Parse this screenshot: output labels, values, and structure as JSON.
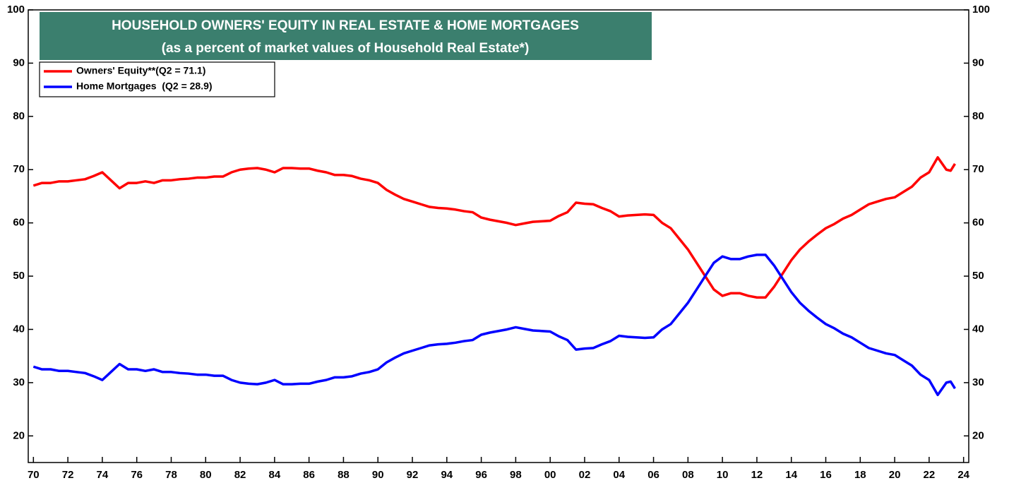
{
  "chart_data": {
    "type": "line",
    "title": "HOUSEHOLD OWNERS' EQUITY IN REAL ESTATE & HOME MORTGAGES",
    "subtitle": "(as a percent of market values of Household Real Estate*)",
    "x": [
      1970,
      1970.5,
      1971,
      1971.5,
      1972,
      1972.5,
      1973,
      1973.5,
      1974,
      1974.5,
      1975,
      1975.5,
      1976,
      1976.5,
      1977,
      1977.5,
      1978,
      1978.5,
      1979,
      1979.5,
      1980,
      1980.5,
      1981,
      1981.5,
      1982,
      1982.5,
      1983,
      1983.5,
      1984,
      1984.5,
      1985,
      1985.5,
      1986,
      1986.5,
      1987,
      1987.5,
      1988,
      1988.5,
      1989,
      1989.5,
      1990,
      1990.5,
      1991,
      1991.5,
      1992,
      1992.5,
      1993,
      1993.5,
      1994,
      1994.5,
      1995,
      1995.5,
      1996,
      1996.5,
      1997,
      1997.5,
      1998,
      1998.5,
      1999,
      1999.5,
      2000,
      2000.5,
      2001,
      2001.5,
      2002,
      2002.5,
      2003,
      2003.5,
      2004,
      2004.5,
      2005,
      2005.5,
      2006,
      2006.5,
      2007,
      2007.5,
      2008,
      2008.5,
      2009,
      2009.5,
      2010,
      2010.5,
      2011,
      2011.5,
      2012,
      2012.5,
      2013,
      2013.5,
      2014,
      2014.5,
      2015,
      2015.5,
      2016,
      2016.5,
      2017,
      2017.5,
      2018,
      2018.5,
      2019,
      2019.5,
      2020,
      2020.5,
      2021,
      2021.5,
      2022,
      2022.5,
      2023,
      2023.25,
      2023.5
    ],
    "series": [
      {
        "name": "Owners' Equity**(Q2 = 71.1)",
        "color": "#ff0000",
        "values": [
          67,
          67.5,
          67.5,
          67.8,
          67.8,
          68,
          68.2,
          68.8,
          69.5,
          68,
          66.5,
          67.5,
          67.5,
          67.8,
          67.5,
          68,
          68,
          68.2,
          68.3,
          68.5,
          68.5,
          68.7,
          68.7,
          69.5,
          70,
          70.2,
          70.3,
          70,
          69.5,
          70.3,
          70.3,
          70.2,
          70.2,
          69.8,
          69.5,
          69,
          69,
          68.8,
          68.3,
          68,
          67.5,
          66.2,
          65.3,
          64.5,
          64,
          63.5,
          63,
          62.8,
          62.7,
          62.5,
          62.2,
          62,
          61,
          60.6,
          60.3,
          60,
          59.6,
          59.9,
          60.2,
          60.3,
          60.4,
          61.3,
          62,
          63.8,
          63.6,
          63.5,
          62.8,
          62.2,
          61.2,
          61.4,
          61.5,
          61.6,
          61.5,
          60,
          59,
          57,
          55,
          52.5,
          50,
          47.5,
          46.3,
          46.8,
          46.8,
          46.3,
          46,
          46,
          48,
          50.5,
          53,
          55,
          56.5,
          57.8,
          59,
          59.8,
          60.8,
          61.5,
          62.5,
          63.5,
          64,
          64.5,
          64.8,
          65.8,
          66.8,
          68.5,
          69.5,
          72.3,
          70,
          69.8,
          71.1
        ]
      },
      {
        "name": "Home Mortgages  (Q2 = 28.9)",
        "color": "#0000ff",
        "values": [
          33,
          32.5,
          32.5,
          32.2,
          32.2,
          32,
          31.8,
          31.2,
          30.5,
          32,
          33.5,
          32.5,
          32.5,
          32.2,
          32.5,
          32,
          32,
          31.8,
          31.7,
          31.5,
          31.5,
          31.3,
          31.3,
          30.5,
          30,
          29.8,
          29.7,
          30,
          30.5,
          29.7,
          29.7,
          29.8,
          29.8,
          30.2,
          30.5,
          31,
          31,
          31.2,
          31.7,
          32,
          32.5,
          33.8,
          34.7,
          35.5,
          36,
          36.5,
          37,
          37.2,
          37.3,
          37.5,
          37.8,
          38,
          39,
          39.4,
          39.7,
          40,
          40.4,
          40.1,
          39.8,
          39.7,
          39.6,
          38.7,
          38,
          36.2,
          36.4,
          36.5,
          37.2,
          37.8,
          38.8,
          38.6,
          38.5,
          38.4,
          38.5,
          40,
          41,
          43,
          45,
          47.5,
          50,
          52.5,
          53.7,
          53.2,
          53.2,
          53.7,
          54,
          54,
          52,
          49.5,
          47,
          45,
          43.5,
          42.2,
          41,
          40.2,
          39.2,
          38.5,
          37.5,
          36.5,
          36,
          35.5,
          35.2,
          34.2,
          33.2,
          31.5,
          30.5,
          27.7,
          30,
          30.2,
          28.9
        ]
      }
    ],
    "xlim": [
      1969.7,
      2024.3
    ],
    "xticks": [
      {
        "value": 1970,
        "label": "70"
      },
      {
        "value": 1972,
        "label": "72"
      },
      {
        "value": 1974,
        "label": "74"
      },
      {
        "value": 1976,
        "label": "76"
      },
      {
        "value": 1978,
        "label": "78"
      },
      {
        "value": 1980,
        "label": "80"
      },
      {
        "value": 1982,
        "label": "82"
      },
      {
        "value": 1984,
        "label": "84"
      },
      {
        "value": 1986,
        "label": "86"
      },
      {
        "value": 1988,
        "label": "88"
      },
      {
        "value": 1990,
        "label": "90"
      },
      {
        "value": 1992,
        "label": "92"
      },
      {
        "value": 1994,
        "label": "94"
      },
      {
        "value": 1996,
        "label": "96"
      },
      {
        "value": 1998,
        "label": "98"
      },
      {
        "value": 2000,
        "label": "00"
      },
      {
        "value": 2002,
        "label": "02"
      },
      {
        "value": 2004,
        "label": "04"
      },
      {
        "value": 2006,
        "label": "06"
      },
      {
        "value": 2008,
        "label": "08"
      },
      {
        "value": 2010,
        "label": "10"
      },
      {
        "value": 2012,
        "label": "12"
      },
      {
        "value": 2014,
        "label": "14"
      },
      {
        "value": 2016,
        "label": "16"
      },
      {
        "value": 2018,
        "label": "18"
      },
      {
        "value": 2020,
        "label": "20"
      },
      {
        "value": 2022,
        "label": "22"
      },
      {
        "value": 2024,
        "label": "24"
      }
    ],
    "ylim": [
      15,
      100
    ],
    "yticks": [
      20,
      30,
      40,
      50,
      60,
      70,
      80,
      90,
      100
    ],
    "grid": false,
    "legend": "top-left"
  }
}
